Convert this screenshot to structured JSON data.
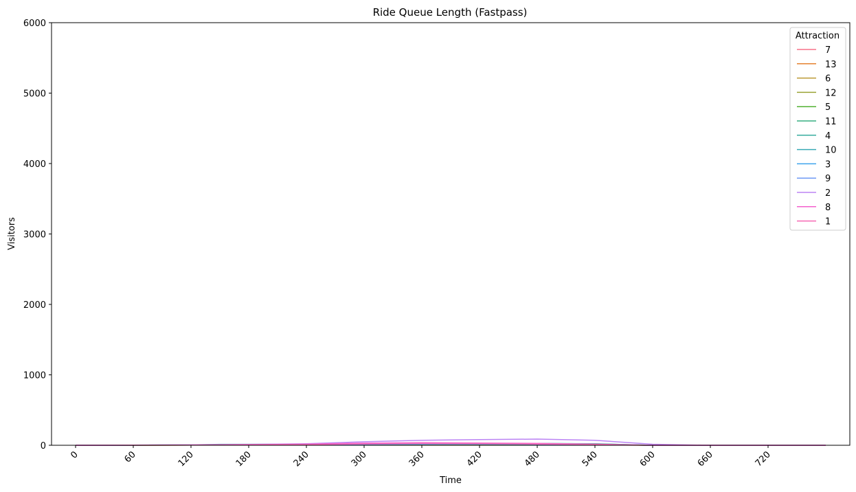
{
  "chart_data": {
    "type": "line",
    "title": "Ride Queue Length (Fastpass)",
    "xlabel": "Time",
    "ylabel": "Visitors",
    "xlim": [
      -25,
      805
    ],
    "ylim": [
      0,
      6000
    ],
    "xticks": [
      0,
      60,
      120,
      180,
      240,
      300,
      360,
      420,
      480,
      540,
      600,
      660,
      720
    ],
    "yticks": [
      0,
      1000,
      2000,
      3000,
      4000,
      5000,
      6000
    ],
    "legend_title": "Attraction",
    "legend_position": "top-right",
    "grid": false,
    "series": [
      {
        "name": "7",
        "color": "#f77189",
        "x": [
          0,
          120,
          240,
          300,
          360,
          420,
          480,
          540,
          600,
          780
        ],
        "y": [
          0,
          2,
          8,
          14,
          18,
          16,
          12,
          8,
          0,
          0
        ]
      },
      {
        "name": "13",
        "color": "#e5812e",
        "x": [
          0,
          120,
          180,
          240,
          300,
          360,
          420,
          480,
          540,
          600,
          780
        ],
        "y": [
          0,
          3,
          8,
          10,
          12,
          14,
          12,
          10,
          6,
          0,
          0
        ]
      },
      {
        "name": "6",
        "color": "#bb9832",
        "x": [
          0,
          120,
          240,
          300,
          360,
          420,
          480,
          540,
          600,
          780
        ],
        "y": [
          0,
          3,
          10,
          16,
          20,
          18,
          14,
          10,
          0,
          0
        ]
      },
      {
        "name": "12",
        "color": "#99a233",
        "x": [
          0,
          120,
          240,
          300,
          360,
          420,
          480,
          540,
          600,
          780
        ],
        "y": [
          0,
          2,
          8,
          12,
          14,
          14,
          12,
          10,
          0,
          0
        ]
      },
      {
        "name": "5",
        "color": "#50b131",
        "x": [
          0,
          120,
          240,
          300,
          360,
          420,
          480,
          540,
          600,
          780
        ],
        "y": [
          0,
          3,
          9,
          14,
          16,
          16,
          14,
          10,
          0,
          0
        ]
      },
      {
        "name": "11",
        "color": "#35ad80",
        "x": [
          0,
          120,
          240,
          300,
          360,
          420,
          480,
          540,
          600,
          780
        ],
        "y": [
          0,
          4,
          12,
          16,
          20,
          22,
          24,
          22,
          0,
          0
        ]
      },
      {
        "name": "4",
        "color": "#36ac9e",
        "x": [
          0,
          120,
          240,
          300,
          360,
          420,
          480,
          540,
          600,
          780
        ],
        "y": [
          0,
          4,
          14,
          18,
          22,
          20,
          18,
          14,
          0,
          0
        ]
      },
      {
        "name": "10",
        "color": "#38aab4",
        "x": [
          0,
          120,
          150,
          240,
          300,
          360,
          420,
          480,
          540,
          600,
          780
        ],
        "y": [
          0,
          6,
          14,
          16,
          20,
          22,
          24,
          26,
          20,
          0,
          0
        ]
      },
      {
        "name": "3",
        "color": "#3ba3ec",
        "x": [
          0,
          120,
          240,
          300,
          360,
          420,
          480,
          540,
          600,
          780
        ],
        "y": [
          0,
          4,
          12,
          16,
          18,
          18,
          16,
          12,
          0,
          0
        ]
      },
      {
        "name": "9",
        "color": "#6e9af4",
        "x": [
          0,
          120,
          240,
          300,
          360,
          420,
          480,
          540,
          600,
          780
        ],
        "y": [
          0,
          3,
          10,
          14,
          16,
          16,
          14,
          10,
          0,
          0
        ]
      },
      {
        "name": "2",
        "color": "#bb83f4",
        "x": [
          0,
          60,
          120,
          180,
          240,
          300,
          360,
          420,
          480,
          540,
          600,
          660,
          780
        ],
        "y": [
          0,
          3,
          6,
          12,
          22,
          50,
          70,
          80,
          88,
          70,
          15,
          0,
          0
        ]
      },
      {
        "name": "8",
        "color": "#f45fcc",
        "x": [
          0,
          120,
          180,
          240,
          300,
          360,
          420,
          480,
          540,
          600,
          780
        ],
        "y": [
          0,
          4,
          10,
          16,
          30,
          36,
          32,
          26,
          16,
          0,
          0
        ]
      },
      {
        "name": "1",
        "color": "#f668b3",
        "x": [
          0,
          120,
          240,
          300,
          360,
          420,
          480,
          540,
          600,
          780
        ],
        "y": [
          0,
          3,
          10,
          20,
          26,
          24,
          18,
          12,
          0,
          0
        ]
      }
    ]
  }
}
